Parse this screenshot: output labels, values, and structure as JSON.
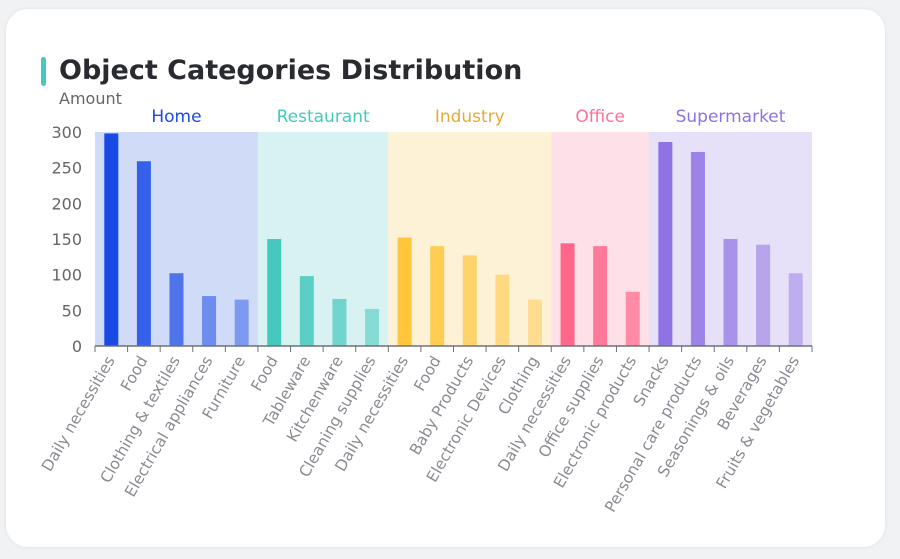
{
  "title": "Object Categories Distribution",
  "accent_color": "#45c9be",
  "chart_data": {
    "type": "bar",
    "ylabel": "Amount",
    "xlabel": "",
    "ylim": [
      0,
      300
    ],
    "yticks": [
      0,
      50,
      100,
      150,
      200,
      250,
      300
    ],
    "grid": false,
    "groups": [
      {
        "name": "Home",
        "color": "#1a4ae6",
        "background": "#d0dbf8",
        "categories": [
          "Daily necessities",
          "Food",
          "Clothing & textiles",
          "Electrical appliances",
          "Furniture"
        ],
        "values": [
          298,
          259,
          102,
          70,
          65
        ]
      },
      {
        "name": "Restaurant",
        "color": "#45c9be",
        "background": "#d8f2f2",
        "categories": [
          "Food",
          "Tableware",
          "Kitchenware",
          "Cleaning supplies"
        ],
        "values": [
          150,
          98,
          66,
          52
        ]
      },
      {
        "name": "Industry",
        "color": "#ffc53d",
        "background": "#fdf1d6",
        "label_color": "#e8aa33",
        "categories": [
          "Daily necessities",
          "Food",
          "Baby Products",
          "Electronic Devices",
          "Clothing"
        ],
        "values": [
          152,
          140,
          127,
          100,
          65
        ]
      },
      {
        "name": "Office",
        "color": "#ff668c",
        "background": "#fde0e8",
        "label_color": "#ff7098",
        "categories": [
          "Daily necessities",
          "Office supplies",
          "Electronic products"
        ],
        "values": [
          144,
          140,
          76
        ]
      },
      {
        "name": "Supermarket",
        "color": "#8f72e4",
        "background": "#e6e0f8",
        "categories": [
          "Snacks",
          "Personal care products",
          "Seasonings & oils",
          "Beverages",
          "Fruits & vegetables"
        ],
        "values": [
          286,
          272,
          150,
          142,
          102
        ]
      }
    ]
  }
}
